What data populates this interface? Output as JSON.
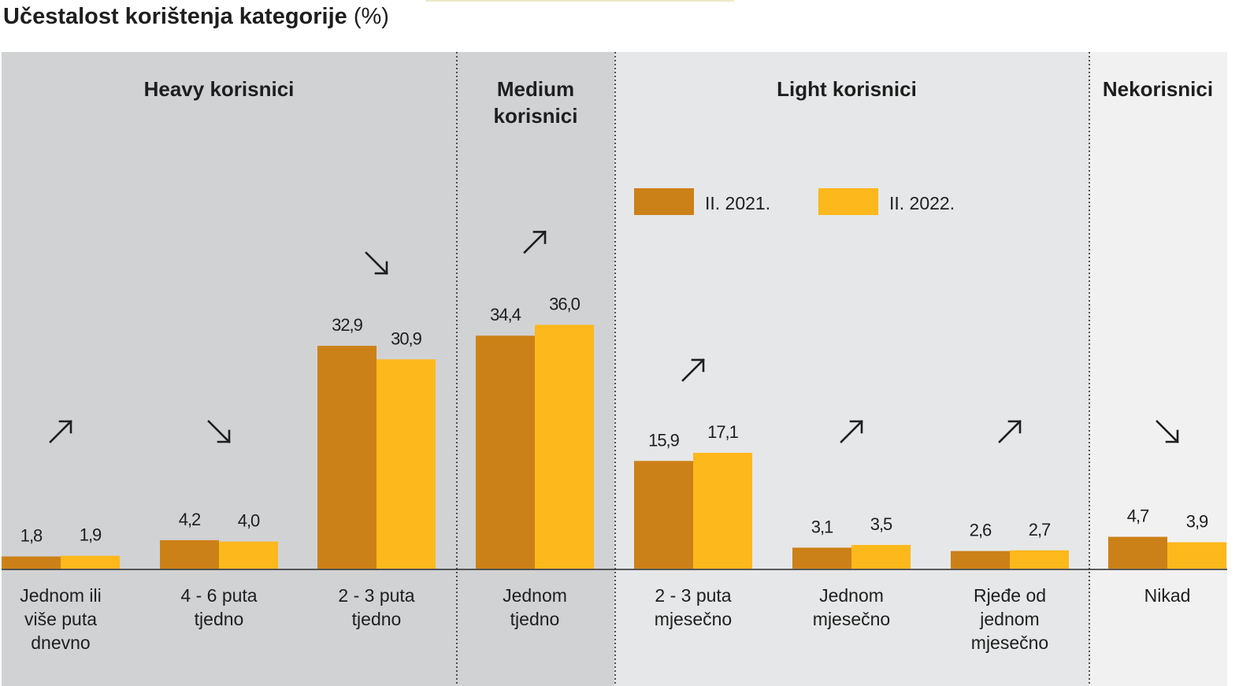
{
  "title": {
    "main": "Učestalost korištenja kategorije",
    "unit": "(%)"
  },
  "colors": {
    "series_2021": "#cc8118",
    "series_2022": "#fdb81c",
    "panel_dark": "#d1d2d4",
    "panel_light": "#e6e7e8",
    "panel_lighter": "#f1f1f2",
    "text": "#1e1e1e"
  },
  "chart_data": {
    "type": "bar",
    "legend_position": "top-center",
    "groups": [
      {
        "label": "Heavy korisnici",
        "categories": [
          "Jednom ili više puta dnevno",
          "4 - 6 puta tjedno",
          "2 - 3 puta tjedno"
        ]
      },
      {
        "label": "Medium korisnici",
        "categories": [
          "Jednom tjedno"
        ]
      },
      {
        "label": "Light korisnici",
        "categories": [
          "2 - 3 puta mjesečno",
          "Jednom mjesečno",
          "Rjeđe od jednom mjesečno"
        ]
      },
      {
        "label": "Nekorisnici",
        "categories": [
          "Nikad"
        ]
      }
    ],
    "categories": [
      "Jednom ili više puta dnevno",
      "4 - 6 puta tjedno",
      "2 - 3 puta tjedno",
      "Jednom tjedno",
      "2 - 3 puta mjesečno",
      "Jednom mjesečno",
      "Rjeđe od jednom mjesečno",
      "Nikad"
    ],
    "series": [
      {
        "name": "II. 2021.",
        "values": [
          1.8,
          4.2,
          32.9,
          34.4,
          15.9,
          3.1,
          2.6,
          4.7
        ],
        "labels": [
          "1,8",
          "4,2",
          "32,9",
          "34,4",
          "15,9",
          "3,1",
          "2,6",
          "4,7"
        ]
      },
      {
        "name": "II. 2022.",
        "values": [
          1.9,
          4.0,
          30.9,
          36.0,
          17.1,
          3.5,
          2.7,
          3.9
        ],
        "labels": [
          "1,9",
          "4,0",
          "30,9",
          "36,0",
          "17,1",
          "3,5",
          "2,7",
          "3,9"
        ]
      }
    ],
    "trend": [
      "up",
      "down",
      "down",
      "up",
      "up",
      "up",
      "up",
      "down"
    ],
    "ylim": [
      0,
      40
    ],
    "grid": false
  }
}
